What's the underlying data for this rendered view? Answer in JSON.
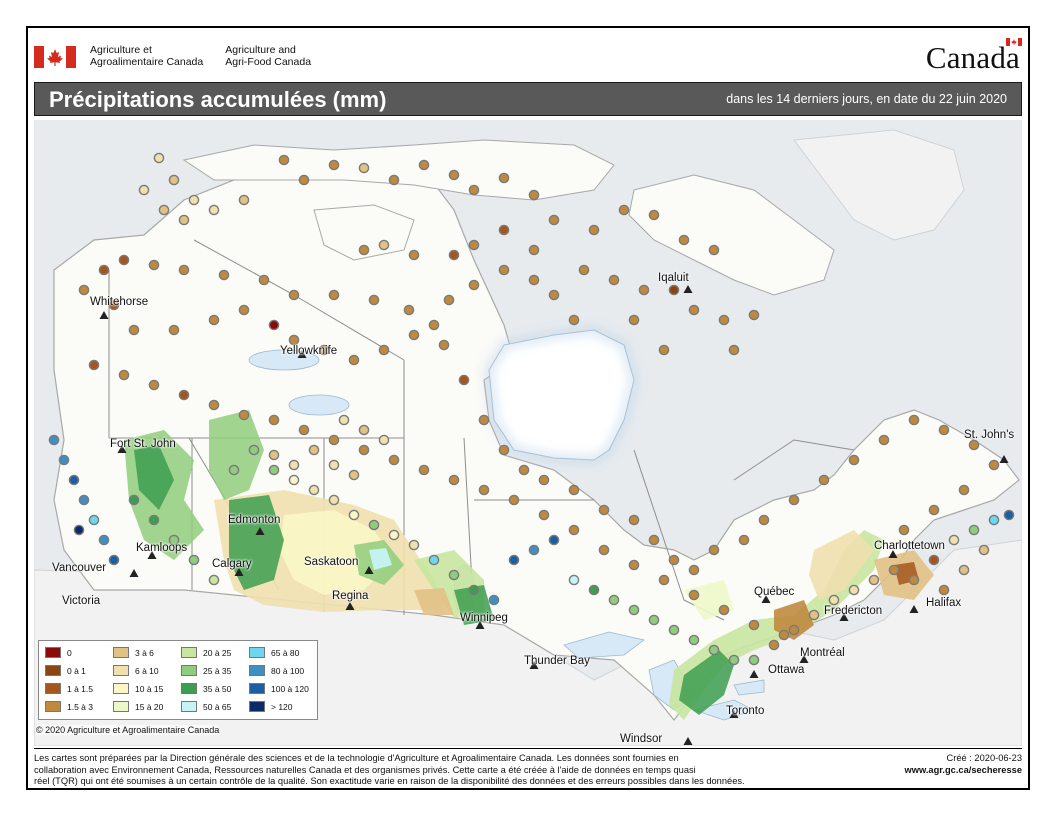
{
  "header": {
    "dept_fr_line1": "Agriculture et",
    "dept_fr_line2": "Agroalimentaire Canada",
    "dept_en_line1": "Agriculture and",
    "dept_en_line2": "Agri-Food Canada",
    "wordmark": "Canada"
  },
  "map_title": "Précipitations accumulées (mm)",
  "map_subtitle": "dans les 14 derniers jours, en date du 22 juin 2020",
  "cities": [
    "Whitehorse",
    "Yellowknife",
    "Iqaluit",
    "Fort St. John",
    "Edmonton",
    "Kamloops",
    "Calgary",
    "Saskatoon",
    "Vancouver",
    "Victoria",
    "Regina",
    "Winnipeg",
    "Thunder Bay",
    "Québec",
    "Charlottetown",
    "St. John's",
    "Fredericton",
    "Halifax",
    "Montréal",
    "Ottawa",
    "Toronto",
    "Windsor"
  ],
  "legend": [
    {
      "label": "0",
      "color": "#8b0a0a"
    },
    {
      "label": "0 à 1",
      "color": "#8a4513"
    },
    {
      "label": "1 à 1.5",
      "color": "#a5561c"
    },
    {
      "label": "1.5 à 3",
      "color": "#c08a3e"
    },
    {
      "label": "3 à 6",
      "color": "#e1c184"
    },
    {
      "label": "6 à 10",
      "color": "#efe0ae"
    },
    {
      "label": "10 à 15",
      "color": "#fbf6c5"
    },
    {
      "label": "15 à 20",
      "color": "#eef7c8"
    },
    {
      "label": "20 à 25",
      "color": "#c8e6a0"
    },
    {
      "label": "25 à 35",
      "color": "#8fcc7d"
    },
    {
      "label": "35 à 50",
      "color": "#3d9e50"
    },
    {
      "label": "50 à 65",
      "color": "#c6f3f5"
    },
    {
      "label": "65 à 80",
      "color": "#6fd6f0"
    },
    {
      "label": "80 à 100",
      "color": "#3d8fc4"
    },
    {
      "label": "100 à 120",
      "color": "#1c5ea3"
    },
    {
      "label": "> 120",
      "color": "#0c2a66"
    }
  ],
  "copyright": "© 2020 Agriculture et Agroalimentaire Canada",
  "footer": {
    "note_line1": "Les cartes sont préparées par la Direction générale des sciences et de la technologie d'Agriculture et Agroalimentaire Canada. Les données sont fournies en",
    "note_line2": "collaboration avec Environnement Canada, Ressources naturelles Canada et des organismes privés. Cette carte a été créée à l'aide de données en temps quasi",
    "note_line3": "réel (TQR) qui ont été soumises à un certain contrôle de la qualité. Son exactitude varie en raison de la disponibilité des données et des erreurs possibles dans les données.",
    "created": "Créé : 2020-06-23",
    "url": "www.agr.gc.ca/secheresse"
  }
}
